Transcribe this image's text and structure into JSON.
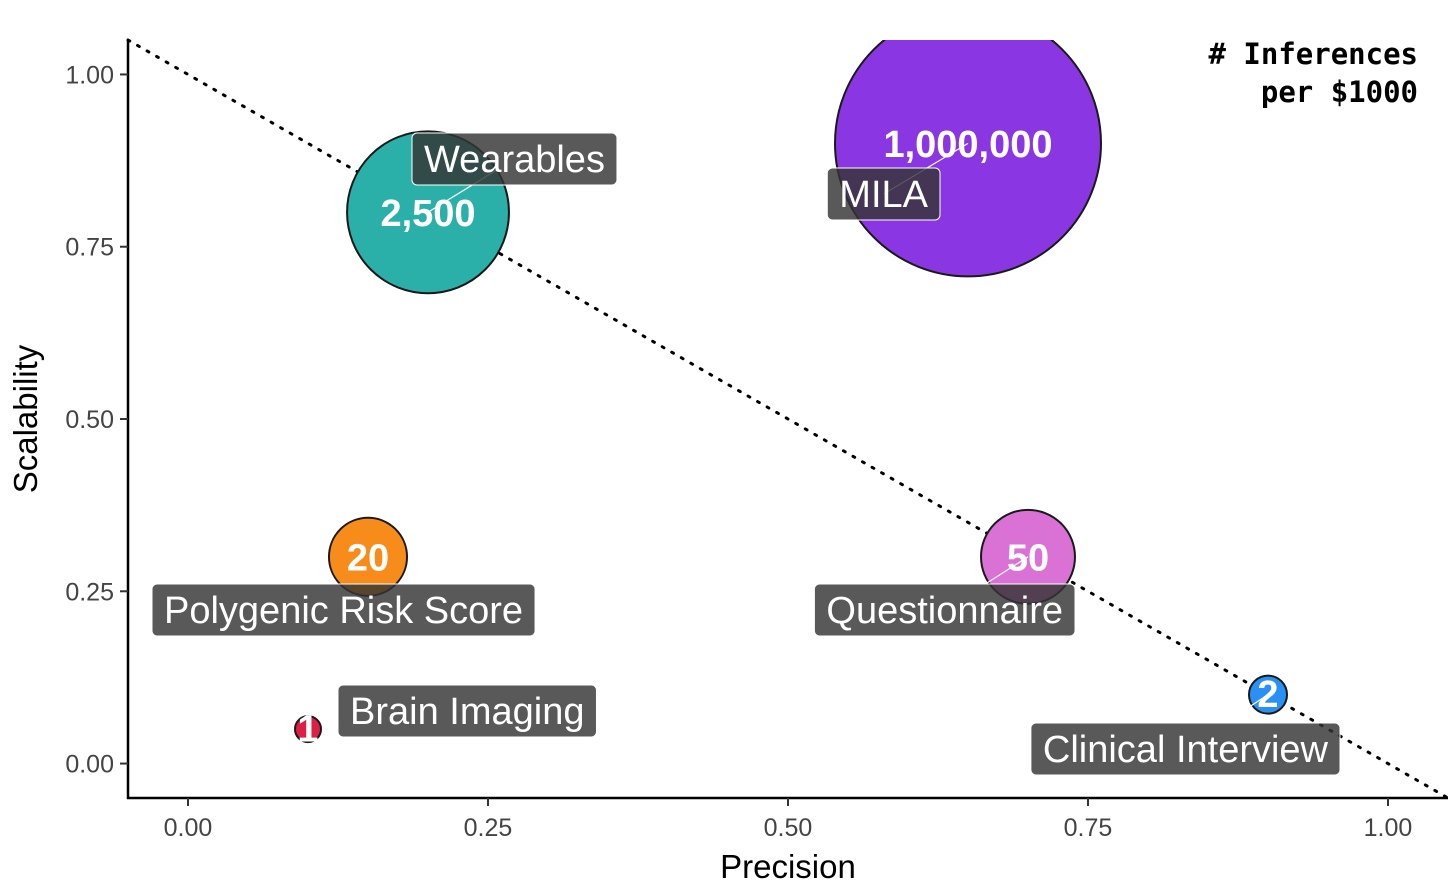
{
  "chart_data": {
    "type": "scatter",
    "title": "",
    "xlabel": "Precision",
    "ylabel": "Scalability",
    "xlim": [
      -0.05,
      1.05
    ],
    "ylim": [
      -0.05,
      1.05
    ],
    "x_ticks": [
      "0.00",
      "0.25",
      "0.50",
      "0.75",
      "1.00"
    ],
    "y_ticks": [
      "0.00",
      "0.25",
      "0.50",
      "0.75",
      "1.00"
    ],
    "grid": false,
    "size_legend_title": [
      "# Inferences",
      "per $1000"
    ],
    "size_legend_placement": "top-right",
    "reference_line": {
      "style": "dotted",
      "from": [
        -0.05,
        1.05
      ],
      "to": [
        1.05,
        -0.05
      ]
    },
    "points": [
      {
        "label": "Wearables",
        "value_label": "2,500",
        "x": 0.2,
        "y": 0.8,
        "inferences": 2500,
        "color": "#2ab0a8"
      },
      {
        "label": "MILA",
        "value_label": "1,000,000",
        "x": 0.65,
        "y": 0.9,
        "inferences": 1000000,
        "color": "#8a37e3"
      },
      {
        "label": "Polygenic Risk Score",
        "value_label": "20",
        "x": 0.15,
        "y": 0.3,
        "inferences": 20,
        "color": "#f88c1a"
      },
      {
        "label": "Questionnaire",
        "value_label": "50",
        "x": 0.7,
        "y": 0.3,
        "inferences": 50,
        "color": "#da72d6"
      },
      {
        "label": "Brain Imaging",
        "value_label": "1",
        "x": 0.1,
        "y": 0.05,
        "inferences": 1,
        "color": "#dc1f45"
      },
      {
        "label": "Clinical Interview",
        "value_label": "2",
        "x": 0.9,
        "y": 0.1,
        "inferences": 2,
        "color": "#2a90f4"
      }
    ]
  }
}
